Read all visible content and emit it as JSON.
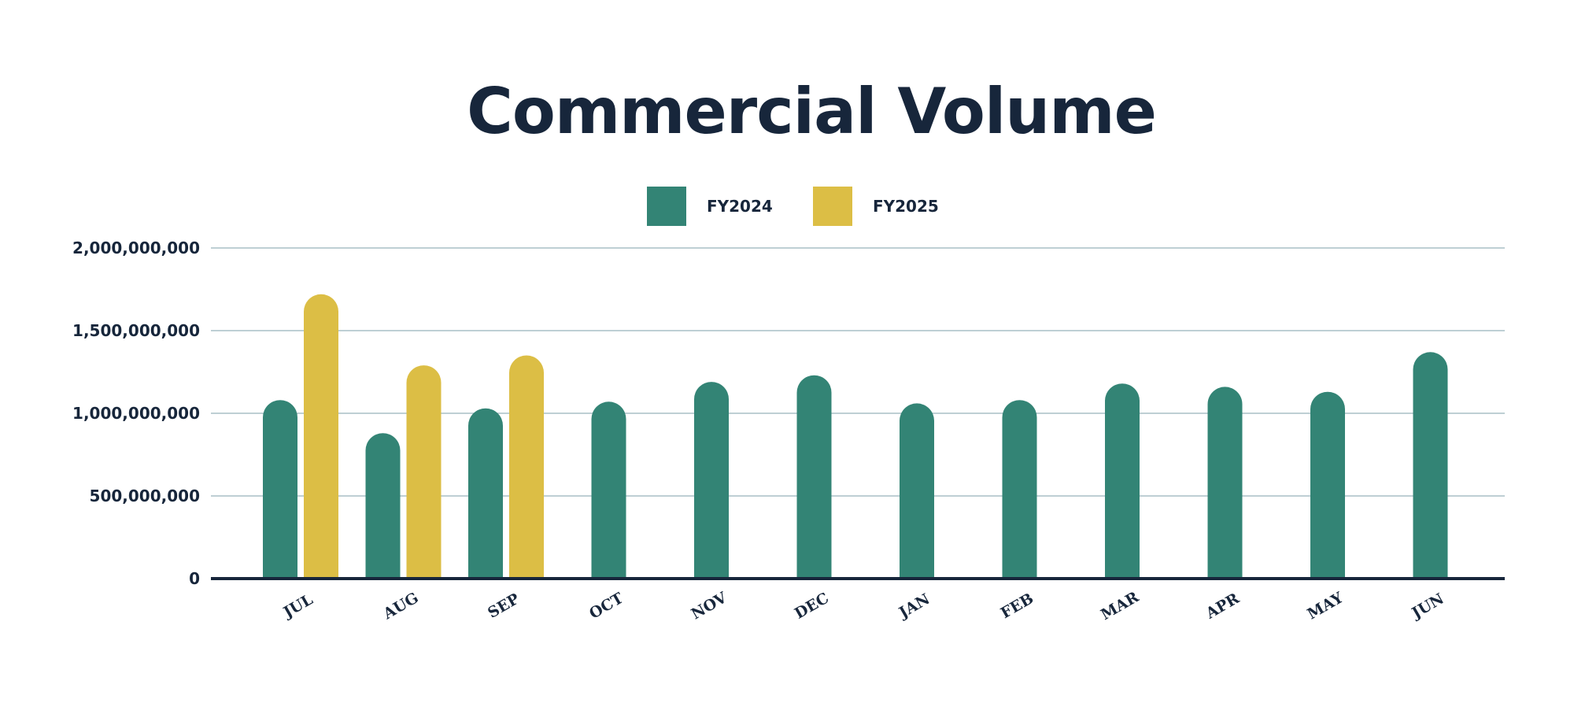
{
  "chart_data": {
    "type": "bar",
    "title": "Commercial Volume",
    "xlabel": "",
    "ylabel": "",
    "categories": [
      "JUL",
      "AUG",
      "SEP",
      "OCT",
      "NOV",
      "DEC",
      "JAN",
      "FEB",
      "MAR",
      "APR",
      "MAY",
      "JUN"
    ],
    "series": [
      {
        "name": "FY2024",
        "color": "#338475",
        "values": [
          1080000000,
          880000000,
          1030000000,
          1070000000,
          1190000000,
          1230000000,
          1060000000,
          1080000000,
          1180000000,
          1160000000,
          1130000000,
          1370000000
        ]
      },
      {
        "name": "FY2025",
        "color": "#dcbe45",
        "values": [
          1720000000,
          1290000000,
          1350000000,
          null,
          null,
          null,
          null,
          null,
          null,
          null,
          null,
          null
        ]
      }
    ],
    "ylim": [
      0,
      2000000000
    ],
    "yticks": [
      0,
      500000000,
      1000000000,
      1500000000,
      2000000000
    ],
    "ytick_labels": [
      "0",
      "500,000,000",
      "1,000,000,000",
      "1,500,000,000",
      "2,000,000,000"
    ],
    "grid": true,
    "legend_position": "top-center"
  }
}
